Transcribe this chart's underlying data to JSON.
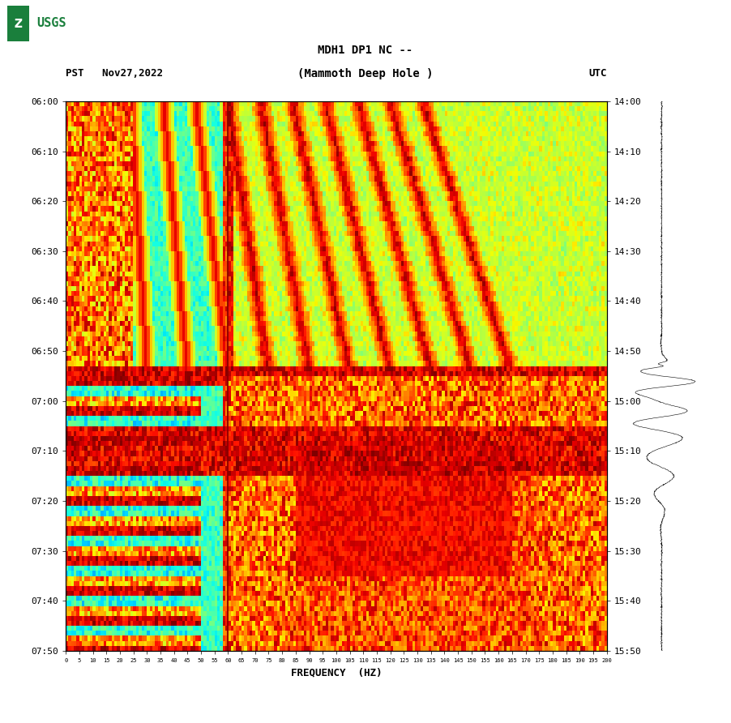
{
  "title_line1": "MDH1 DP1 NC --",
  "title_line2": "(Mammoth Deep Hole )",
  "left_label": "PST   Nov27,2022",
  "right_label": "UTC",
  "xlabel": "FREQUENCY  (HZ)",
  "freq_min": 0,
  "freq_max": 200,
  "freq_ticks": [
    0,
    5,
    10,
    15,
    20,
    25,
    30,
    35,
    40,
    45,
    50,
    55,
    60,
    65,
    70,
    75,
    80,
    85,
    90,
    95,
    100,
    105,
    110,
    115,
    120,
    125,
    130,
    135,
    140,
    145,
    150,
    155,
    160,
    165,
    170,
    175,
    180,
    185,
    190,
    195,
    200
  ],
  "time_ticks_left": [
    "06:00",
    "06:10",
    "06:20",
    "06:30",
    "06:40",
    "06:50",
    "07:00",
    "07:10",
    "07:20",
    "07:30",
    "07:40",
    "07:50"
  ],
  "time_ticks_right": [
    "14:00",
    "14:10",
    "14:20",
    "14:30",
    "14:40",
    "14:50",
    "15:00",
    "15:10",
    "15:20",
    "15:30",
    "15:40",
    "15:50"
  ],
  "vertical_line_freq": 60,
  "colormap": "jet",
  "fig_width": 9.02,
  "fig_height": 8.92,
  "dpi": 100,
  "bg_color": "#ffffff",
  "usgs_color": "#1a7f3c"
}
